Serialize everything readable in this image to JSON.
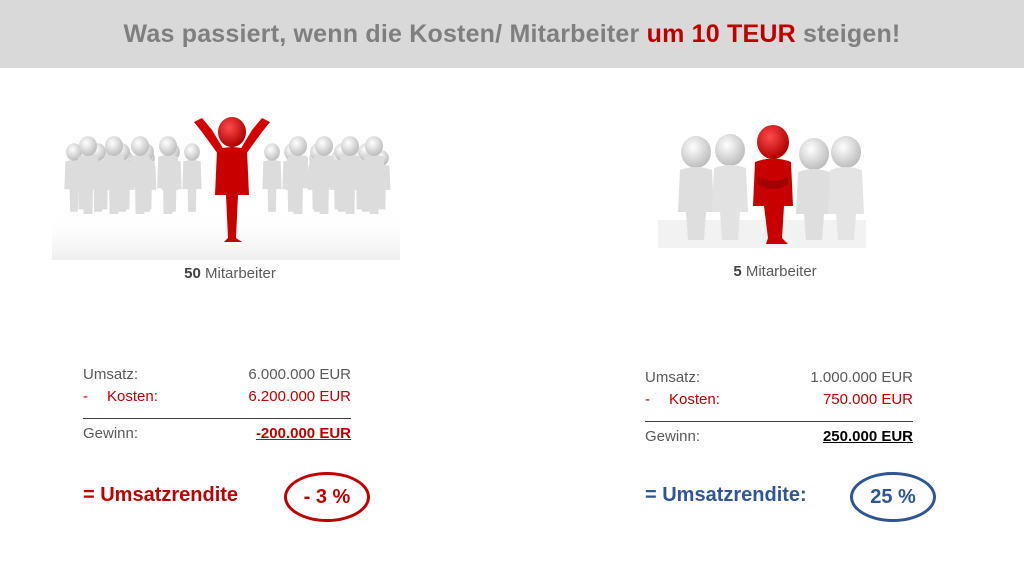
{
  "header": {
    "title_pre": "Was passiert, wenn die Kosten/ Mitarbeiter ",
    "title_highlight": "um 10 TEUR",
    "title_post": " steigen!"
  },
  "left": {
    "caption_count": "50",
    "caption_text": " Mitarbeiter",
    "revenue_label": "Umsatz:",
    "revenue_value": "6.000.000 EUR",
    "cost_dash": "-",
    "cost_label": "Kosten:",
    "cost_value": "6.200.000 EUR",
    "profit_label": "Gewinn:",
    "profit_value": "-200.000 EUR",
    "rendite_label": "= Umsatzrendite",
    "rendite_value": "- 3 %"
  },
  "right": {
    "caption_count": "5",
    "caption_text": " Mitarbeiter",
    "revenue_label": "Umsatz:",
    "revenue_value": "1.000.000 EUR",
    "cost_dash": "-",
    "cost_label": "Kosten:",
    "cost_value": "750.000 EUR",
    "profit_label": "Gewinn:",
    "profit_value": "250.000 EUR",
    "rendite_label": "= Umsatzrendite:",
    "rendite_value": "25 %"
  },
  "colors": {
    "header_bg": "#d9d9d9",
    "header_text": "#7f7f7f",
    "accent_red": "#c00000",
    "accent_blue": "#2f5597",
    "figure_grey": "#dcdcdc",
    "figure_red": "#d40000"
  }
}
